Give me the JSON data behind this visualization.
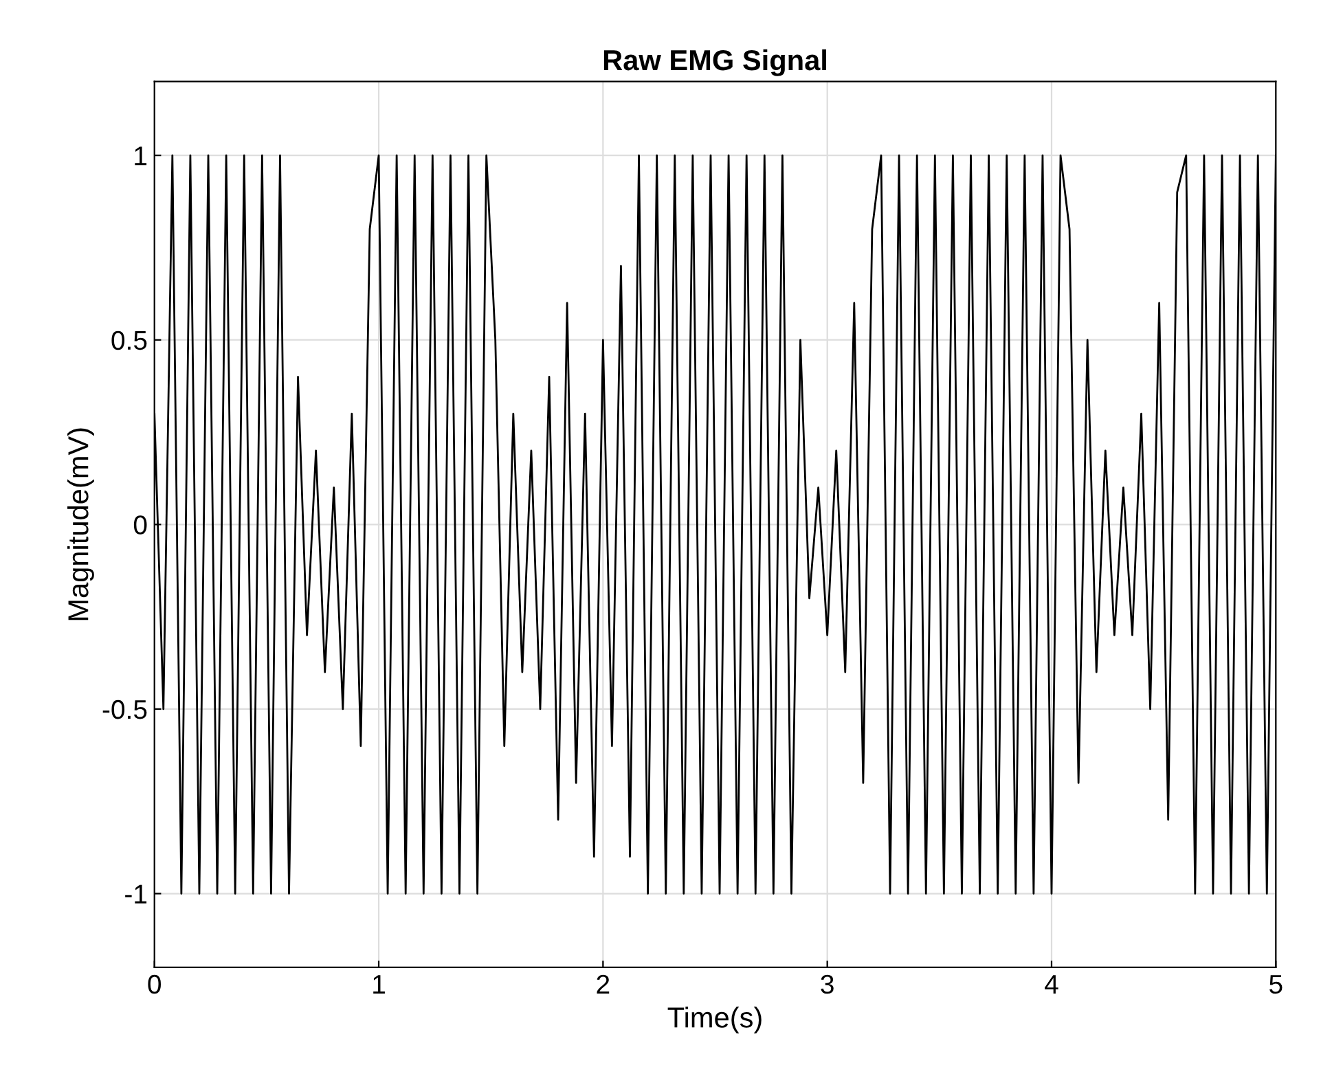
{
  "chart_data": {
    "type": "line",
    "title": "Raw EMG Signal",
    "xlabel": "Time(s)",
    "ylabel": "Magnitude(mV)",
    "xlim": [
      0,
      5
    ],
    "xticks": [
      0,
      1,
      2,
      3,
      4,
      5
    ],
    "ylim": [
      -1.2,
      1.2
    ],
    "yticks": [
      -1,
      -0.5,
      0,
      0.5,
      1
    ],
    "grid": true,
    "series": [
      {
        "color": "#000000",
        "x": [
          0,
          0.04,
          0.08,
          0.12,
          0.16,
          0.2,
          0.24,
          0.28,
          0.32,
          0.36,
          0.4,
          0.44,
          0.48,
          0.52,
          0.56,
          0.6,
          0.64,
          0.68,
          0.72,
          0.76,
          0.8,
          0.84,
          0.88,
          0.92,
          0.96,
          1,
          1.04,
          1.08,
          1.12,
          1.16,
          1.2,
          1.24,
          1.28,
          1.32,
          1.36,
          1.4,
          1.44,
          1.48,
          1.52,
          1.56,
          1.6,
          1.64,
          1.68,
          1.72,
          1.76,
          1.8,
          1.84,
          1.88,
          1.92,
          1.96,
          2,
          2.04,
          2.08,
          2.12,
          2.16,
          2.2,
          2.24,
          2.28,
          2.32,
          2.36,
          2.4,
          2.44,
          2.48,
          2.52,
          2.56,
          2.6,
          2.64,
          2.68,
          2.72,
          2.76,
          2.8,
          2.84,
          2.88,
          2.92,
          2.96,
          3,
          3.04,
          3.08,
          3.12,
          3.16,
          3.2,
          3.24,
          3.28,
          3.32,
          3.36,
          3.4,
          3.44,
          3.48,
          3.52,
          3.56,
          3.6,
          3.64,
          3.68,
          3.72,
          3.76,
          3.8,
          3.84,
          3.88,
          3.92,
          3.96,
          4,
          4.04,
          4.08,
          4.12,
          4.16,
          4.2,
          4.24,
          4.28,
          4.32,
          4.36,
          4.4,
          4.44,
          4.48,
          4.52,
          4.56,
          4.6,
          4.64,
          4.68,
          4.72,
          4.76,
          4.8,
          4.84,
          4.88,
          4.92,
          4.96,
          5
        ],
        "values": [
          0.3,
          -0.5,
          1,
          -1,
          1,
          -1,
          1,
          -1,
          1,
          -1,
          1,
          -1,
          1,
          -1,
          1,
          -1,
          0.4,
          -0.3,
          0.2,
          -0.4,
          0.1,
          -0.5,
          0.3,
          -0.6,
          0.8,
          1,
          -1,
          1,
          -1,
          1,
          -1,
          1,
          -1,
          1,
          -1,
          1,
          -1,
          1,
          0.5,
          -0.6,
          0.3,
          -0.4,
          0.2,
          -0.5,
          0.4,
          -0.8,
          0.6,
          -0.7,
          0.3,
          -0.9,
          0.5,
          -0.6,
          0.7,
          -0.9,
          1,
          -1,
          1,
          -1,
          1,
          -1,
          1,
          -1,
          1,
          -1,
          1,
          -1,
          1,
          -1,
          1,
          -1,
          1,
          -1,
          0.5,
          -0.2,
          0.1,
          -0.3,
          0.2,
          -0.4,
          0.6,
          -0.7,
          0.8,
          1,
          -1,
          1,
          -1,
          1,
          -1,
          1,
          -1,
          1,
          -1,
          1,
          -1,
          1,
          -1,
          1,
          -1,
          1,
          -1,
          1,
          -1,
          1,
          0.8,
          -0.7,
          0.5,
          -0.4,
          0.2,
          -0.3,
          0.1,
          -0.3,
          0.3,
          -0.5,
          0.6,
          -0.8,
          0.9,
          1,
          -1,
          1,
          -1,
          1,
          -1,
          1,
          -1,
          1,
          -1,
          1
        ]
      }
    ]
  }
}
